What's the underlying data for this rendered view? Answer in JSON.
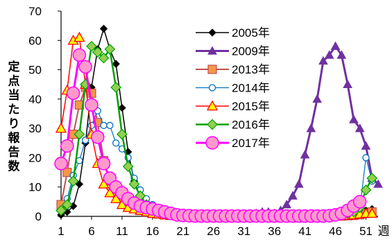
{
  "chart_data": {
    "type": "line",
    "ylabel": "定点当たり報告数",
    "xlabel": "週",
    "ylim": [
      0,
      70
    ],
    "yticks": [
      0,
      10,
      20,
      30,
      40,
      50,
      60,
      70
    ],
    "xticks": [
      1,
      6,
      11,
      16,
      21,
      26,
      31,
      36,
      41,
      46,
      51
    ],
    "xlim": [
      1,
      53
    ],
    "grid": false,
    "legend_position": "top-right",
    "series": [
      {
        "name": "2005年",
        "color": "#000000",
        "marker": "diamond",
        "x": [
          1,
          2,
          3,
          4,
          5,
          6,
          7,
          8,
          9,
          10,
          11,
          12,
          13,
          14,
          15,
          16,
          17,
          18,
          19,
          20,
          21,
          22,
          23,
          24,
          25,
          26,
          27,
          28,
          29,
          30,
          31,
          32,
          33,
          34,
          35,
          36,
          37,
          38,
          39,
          40,
          41,
          42,
          43,
          44,
          45,
          46,
          47,
          48,
          49,
          50,
          51,
          52
        ],
        "values": [
          0.5,
          1.5,
          3.5,
          11,
          25,
          44,
          57,
          64,
          57,
          52,
          37,
          22,
          12,
          7,
          4,
          2.5,
          1.5,
          1,
          0.5,
          0.3,
          0.2,
          0.1,
          0.1,
          0.1,
          0.1,
          0.1,
          0.1,
          0.1,
          0.1,
          0.1,
          0.1,
          0.1,
          0.1,
          0.1,
          0.1,
          0.1,
          0.1,
          0.1,
          0.1,
          0.1,
          0.1,
          0.1,
          0.1,
          0.1,
          0.1,
          0.1,
          0.2,
          0.3,
          0.5,
          1,
          2,
          2.5
        ]
      },
      {
        "name": "2009年",
        "color": "#7030a0",
        "marker": "triangle",
        "x": [
          33,
          34,
          35,
          36,
          37,
          38,
          39,
          40,
          41,
          42,
          43,
          44,
          45,
          46,
          47,
          48,
          49,
          50,
          51,
          52,
          53
        ],
        "values": [
          1,
          1.5,
          1.5,
          1,
          2,
          4,
          7,
          11,
          21,
          30,
          40,
          53,
          55,
          58,
          55,
          45,
          33,
          30,
          24,
          13,
          11
        ]
      },
      {
        "name": "2013年",
        "color": "#c0504d",
        "marker": "square",
        "x": [
          1,
          2,
          3,
          4,
          5,
          6,
          7,
          8,
          9,
          10,
          11,
          12,
          13,
          14,
          15,
          16,
          17,
          18,
          19,
          20,
          21,
          22,
          23,
          24,
          25,
          26,
          27,
          28,
          29,
          30,
          31,
          32,
          33,
          34,
          35,
          36,
          37,
          38,
          39,
          40,
          41,
          42,
          43,
          44,
          45,
          46,
          47,
          48,
          49,
          50,
          51,
          52
        ],
        "values": [
          4,
          15,
          28,
          38,
          44,
          42,
          32,
          19,
          12,
          8,
          6,
          4,
          3,
          2,
          1.5,
          1,
          0.8,
          0.5,
          0.3,
          0.2,
          0.1,
          0.1,
          0.1,
          0.1,
          0.1,
          0.1,
          0.1,
          0.1,
          0.1,
          0.1,
          0.1,
          0.1,
          0.1,
          0.1,
          0.1,
          0.1,
          0.1,
          0.1,
          0.1,
          0.1,
          0.1,
          0.1,
          0.1,
          0.1,
          0.1,
          0.1,
          0.1,
          0.2,
          0.3,
          0.5,
          1,
          1.5
        ]
      },
      {
        "name": "2014年",
        "color": "#0070c0",
        "marker": "circle-open",
        "x": [
          1,
          2,
          3,
          4,
          5,
          6,
          7,
          8,
          9,
          10,
          11,
          12,
          13,
          14,
          15,
          16,
          17,
          18,
          19,
          20,
          21,
          22,
          23,
          24,
          25,
          26,
          27,
          28,
          29,
          30,
          31,
          32,
          33,
          34,
          35,
          36,
          37,
          38,
          39,
          40,
          41,
          42,
          43,
          44,
          45,
          46,
          47,
          48,
          49,
          50,
          51,
          52
        ],
        "values": [
          2,
          6,
          14,
          19,
          26,
          31,
          36,
          31,
          31,
          25,
          23,
          20,
          13,
          9,
          6,
          4,
          3,
          2,
          1.5,
          1,
          0.5,
          0.3,
          0.2,
          0.1,
          0.1,
          0.1,
          0.1,
          0.1,
          0.1,
          0.1,
          0.1,
          0.1,
          0.1,
          0.1,
          0.1,
          0.1,
          0.1,
          0.1,
          0.1,
          0.1,
          0.1,
          0.1,
          0.1,
          0.1,
          0.1,
          0.1,
          0.2,
          0.5,
          1,
          2.5,
          20,
          12
        ]
      },
      {
        "name": "2015年",
        "color": "#ff0000",
        "fill": "#ffff00",
        "marker": "triangle-filled",
        "x": [
          1,
          2,
          3,
          4,
          5,
          6,
          7,
          8,
          9,
          10,
          11,
          12,
          13,
          14,
          15,
          16,
          17,
          18,
          19,
          20,
          21,
          22,
          23,
          24,
          25,
          26,
          27,
          28,
          29,
          30,
          31,
          32,
          33,
          34,
          35,
          36,
          37,
          38,
          39,
          40,
          41,
          42,
          43,
          44,
          45,
          46,
          47,
          48,
          49,
          50,
          51,
          52
        ],
        "values": [
          30,
          43,
          60,
          61,
          45,
          28,
          18,
          11,
          8,
          6,
          4,
          3,
          2.5,
          2,
          1.5,
          1,
          0.8,
          0.5,
          0.3,
          0.2,
          0.1,
          0.1,
          0.1,
          0.1,
          0.1,
          0.1,
          0.1,
          0.1,
          0.1,
          0.1,
          0.1,
          0.1,
          0.1,
          0.1,
          0.1,
          0.1,
          0.1,
          0.1,
          0.1,
          0.1,
          0.1,
          0.1,
          0.1,
          0.1,
          0.1,
          0.1,
          0.2,
          0.3,
          0.5,
          0.8,
          1,
          1
        ]
      },
      {
        "name": "2016年",
        "color": "#00a000",
        "fill": "#92d050",
        "marker": "diamond-filled",
        "x": [
          1,
          2,
          3,
          4,
          5,
          6,
          7,
          8,
          9,
          10,
          11,
          12,
          13,
          14,
          15,
          16,
          17,
          18,
          19,
          20,
          21,
          22,
          23,
          24,
          25,
          26,
          27,
          28,
          29,
          30,
          31,
          32,
          33,
          34,
          35,
          36,
          37,
          38,
          39,
          40,
          41,
          42,
          43,
          44,
          45,
          46,
          47,
          48,
          49,
          50,
          51,
          52
        ],
        "values": [
          2,
          4,
          12,
          28,
          45,
          58,
          56,
          54,
          57,
          44,
          28,
          17,
          11,
          7,
          4,
          2.5,
          1.5,
          1,
          0.5,
          0.3,
          0.2,
          0.1,
          0.1,
          0.1,
          0.1,
          0.1,
          0.1,
          0.1,
          0.1,
          0.1,
          0.1,
          0.1,
          0.1,
          0.1,
          0.1,
          0.1,
          0.1,
          0.1,
          0.1,
          0.1,
          0.1,
          0.1,
          0.1,
          0.1,
          0.2,
          0.3,
          0.5,
          1,
          1.5,
          3,
          9,
          13
        ]
      },
      {
        "name": "2017年",
        "color": "#ff00ff",
        "fill": "#ff99cc",
        "marker": "circle-big",
        "x": [
          1,
          2,
          3,
          4,
          5,
          6,
          7,
          8,
          9,
          10,
          11,
          12,
          13,
          14,
          15,
          16,
          17,
          18,
          19,
          20,
          21,
          22,
          23,
          24,
          25,
          26,
          27,
          28,
          29,
          30,
          31,
          32,
          33,
          34,
          35,
          36,
          37,
          38,
          39,
          40,
          41,
          42,
          43,
          44,
          45,
          46,
          47,
          48,
          49,
          50
        ],
        "values": [
          18,
          24,
          42,
          55,
          51,
          38,
          27,
          18,
          13,
          10,
          8,
          6,
          4.5,
          3.5,
          3,
          2.5,
          2,
          1.5,
          1,
          0.5,
          0.3,
          0.2,
          0.1,
          0.1,
          0.1,
          0.1,
          0.1,
          0.1,
          0.1,
          0.1,
          0.1,
          0.1,
          0.1,
          0.1,
          0.1,
          0.1,
          0.1,
          0.1,
          0.1,
          0.1,
          0.1,
          0.1,
          0.1,
          0.1,
          0.2,
          0.5,
          1,
          2,
          3.5,
          5
        ]
      }
    ]
  }
}
